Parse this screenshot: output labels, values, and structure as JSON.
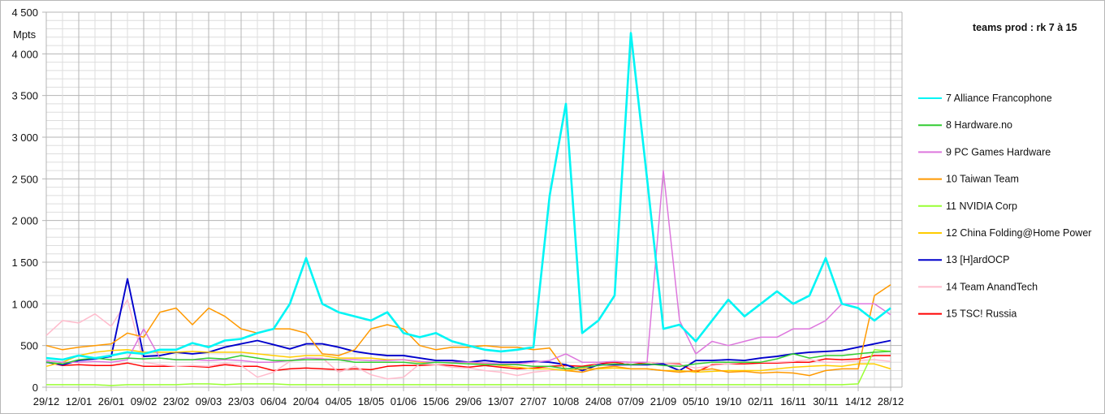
{
  "chart_data": {
    "type": "line",
    "title": "teams prod : rk 7 à 15",
    "ylabel": "Mpts",
    "xlabel": "",
    "ylim": [
      0,
      4500
    ],
    "yticks": [
      "0",
      "500",
      "1 000",
      "1 500",
      "2 000",
      "2 500",
      "3 000",
      "3 500",
      "4 000",
      "4 500"
    ],
    "ytick_values": [
      0,
      500,
      1000,
      1500,
      2000,
      2500,
      3000,
      3500,
      4000,
      4500
    ],
    "xtick_labels": [
      "29/12",
      "12/01",
      "26/01",
      "09/02",
      "23/02",
      "09/03",
      "23/03",
      "06/04",
      "20/04",
      "04/05",
      "18/05",
      "01/06",
      "15/06",
      "29/06",
      "13/07",
      "27/07",
      "10/08",
      "24/08",
      "07/09",
      "21/09",
      "05/10",
      "19/10",
      "02/11",
      "16/11",
      "30/11",
      "14/12",
      "28/12"
    ],
    "grid": true,
    "legend_placement": "right",
    "x": [
      "29/12",
      "05/01",
      "12/01",
      "19/01",
      "26/01",
      "02/02",
      "09/02",
      "16/02",
      "23/02",
      "02/03",
      "09/03",
      "16/03",
      "23/03",
      "30/03",
      "06/04",
      "13/04",
      "20/04",
      "27/04",
      "04/05",
      "11/05",
      "18/05",
      "25/05",
      "01/06",
      "08/06",
      "15/06",
      "22/06",
      "29/06",
      "06/07",
      "13/07",
      "20/07",
      "27/07",
      "03/08",
      "10/08",
      "17/08",
      "24/08",
      "31/08",
      "07/09",
      "14/09",
      "21/09",
      "28/09",
      "05/10",
      "12/10",
      "19/10",
      "26/10",
      "02/11",
      "09/11",
      "16/11",
      "23/11",
      "30/11",
      "07/12",
      "14/12",
      "21/12",
      "28/12"
    ],
    "series": [
      {
        "name": "7 Alliance Francophone",
        "color": "#00f5f5",
        "values": [
          350,
          330,
          380,
          350,
          380,
          420,
          400,
          450,
          450,
          530,
          480,
          560,
          580,
          650,
          700,
          1000,
          1550,
          1000,
          900,
          850,
          800,
          900,
          650,
          600,
          650,
          550,
          500,
          450,
          430,
          450,
          480,
          2300,
          3400,
          650,
          800,
          1100,
          4250,
          2500,
          700,
          750,
          550,
          800,
          1050,
          850,
          1000,
          1150,
          1000,
          1100,
          1550,
          1000,
          950,
          800,
          950
        ]
      },
      {
        "name": "8 Hardware.no",
        "color": "#33cc33",
        "values": [
          300,
          280,
          330,
          350,
          330,
          350,
          340,
          350,
          330,
          330,
          350,
          340,
          380,
          350,
          320,
          320,
          330,
          330,
          330,
          300,
          300,
          300,
          300,
          280,
          300,
          290,
          280,
          270,
          270,
          270,
          250,
          250,
          220,
          240,
          260,
          280,
          270,
          280,
          260,
          250,
          280,
          300,
          300,
          300,
          300,
          340,
          400,
          350,
          380,
          380,
          400,
          420,
          430
        ]
      },
      {
        "name": "9 PC Games Hardware",
        "color": "#dd77dd",
        "values": [
          320,
          300,
          300,
          310,
          300,
          330,
          700,
          350,
          330,
          330,
          320,
          330,
          320,
          300,
          300,
          320,
          350,
          340,
          330,
          330,
          320,
          320,
          330,
          310,
          300,
          300,
          300,
          290,
          280,
          280,
          300,
          320,
          400,
          300,
          300,
          310,
          300,
          300,
          2600,
          800,
          400,
          550,
          500,
          550,
          600,
          600,
          700,
          700,
          800,
          1000,
          1000,
          1000,
          870
        ]
      },
      {
        "name": "10 Taiwan Team",
        "color": "#ff9900",
        "values": [
          500,
          450,
          480,
          500,
          520,
          650,
          600,
          900,
          950,
          750,
          950,
          850,
          700,
          650,
          700,
          700,
          650,
          400,
          380,
          450,
          700,
          750,
          700,
          500,
          450,
          480,
          480,
          500,
          480,
          480,
          450,
          470,
          200,
          180,
          230,
          250,
          220,
          220,
          200,
          180,
          200,
          220,
          180,
          190,
          170,
          180,
          170,
          140,
          200,
          220,
          220,
          1100,
          1230
        ]
      },
      {
        "name": "11 NVIDIA Corp",
        "color": "#99ff33",
        "values": [
          30,
          30,
          30,
          30,
          20,
          30,
          30,
          30,
          30,
          40,
          40,
          30,
          40,
          40,
          40,
          30,
          30,
          30,
          30,
          30,
          30,
          30,
          30,
          30,
          30,
          30,
          30,
          30,
          30,
          30,
          30,
          30,
          30,
          30,
          30,
          30,
          30,
          30,
          30,
          30,
          30,
          30,
          30,
          30,
          30,
          30,
          30,
          30,
          30,
          30,
          40,
          450,
          430
        ]
      },
      {
        "name": "12 China Folding@Home Power",
        "color": "#ffcc00",
        "values": [
          250,
          300,
          380,
          420,
          440,
          450,
          420,
          420,
          420,
          430,
          420,
          420,
          420,
          400,
          380,
          360,
          380,
          380,
          350,
          350,
          350,
          330,
          330,
          300,
          300,
          300,
          300,
          280,
          260,
          240,
          220,
          220,
          200,
          220,
          220,
          230,
          220,
          220,
          200,
          200,
          180,
          190,
          200,
          200,
          200,
          220,
          240,
          250,
          260,
          250,
          280,
          280,
          220
        ]
      },
      {
        "name": "13 [H]ardOCP",
        "color": "#0000cc",
        "values": [
          300,
          270,
          320,
          340,
          370,
          1300,
          370,
          380,
          420,
          400,
          420,
          480,
          520,
          560,
          510,
          460,
          520,
          520,
          480,
          430,
          400,
          380,
          380,
          350,
          320,
          320,
          300,
          320,
          300,
          300,
          310,
          300,
          270,
          200,
          270,
          270,
          270,
          270,
          280,
          200,
          320,
          320,
          330,
          320,
          350,
          370,
          400,
          420,
          430,
          440,
          480,
          520,
          560
        ]
      },
      {
        "name": "14 Team AnandTech",
        "color": "#ffbbcc",
        "values": [
          620,
          800,
          770,
          880,
          730,
          1050,
          300,
          270,
          250,
          260,
          250,
          290,
          260,
          120,
          180,
          310,
          350,
          350,
          180,
          250,
          150,
          100,
          120,
          280,
          270,
          240,
          230,
          200,
          180,
          140,
          180,
          200,
          220,
          220,
          280,
          250,
          300,
          300,
          280,
          270,
          230,
          260,
          280,
          300,
          300,
          300,
          310,
          330,
          300,
          300,
          320,
          330,
          310
        ]
      },
      {
        "name": "15 TSC! Russia",
        "color": "#ff0000",
        "values": [
          300,
          260,
          270,
          260,
          260,
          290,
          250,
          250,
          250,
          250,
          240,
          270,
          250,
          250,
          200,
          220,
          230,
          220,
          210,
          220,
          210,
          250,
          260,
          260,
          270,
          260,
          240,
          260,
          240,
          220,
          230,
          250,
          260,
          250,
          280,
          300,
          270,
          300,
          280,
          280,
          180,
          270,
          280,
          280,
          290,
          290,
          300,
          300,
          340,
          330,
          340,
          380,
          380
        ]
      }
    ]
  }
}
